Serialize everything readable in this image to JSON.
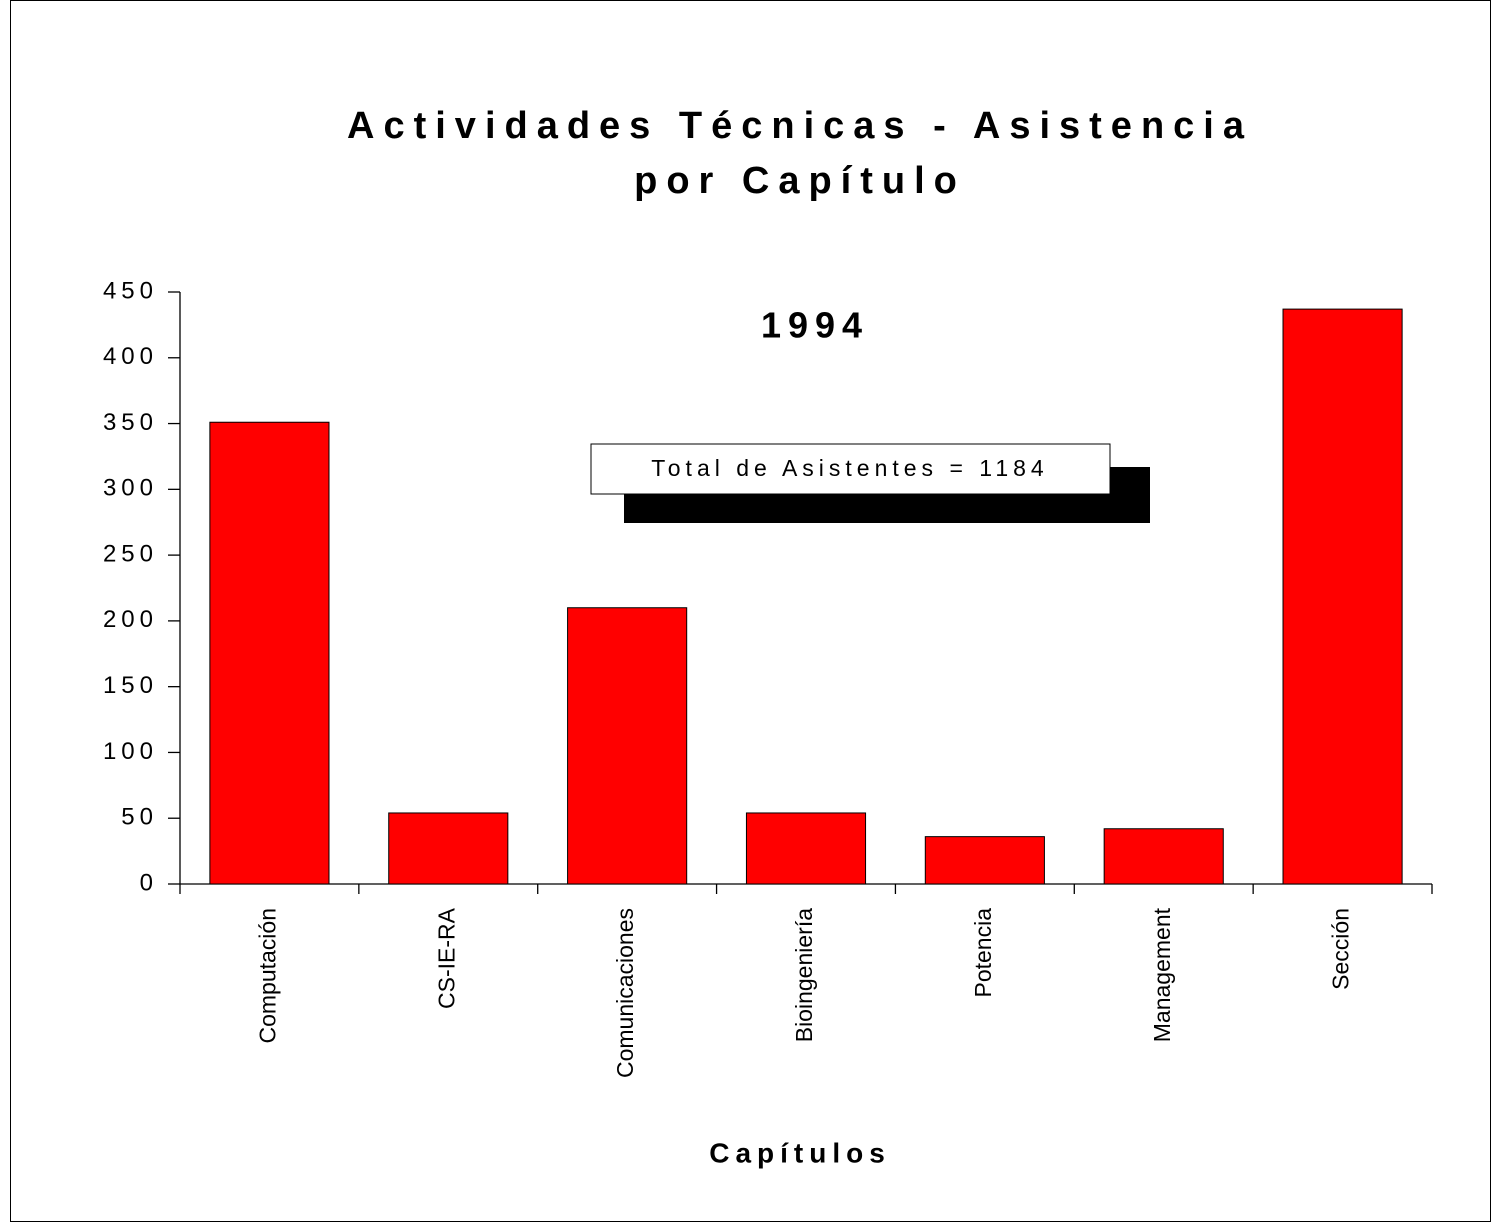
{
  "chart_data": {
    "type": "bar",
    "title": [
      "Actividades Técnicas - Asistencia",
      "por Capítulo"
    ],
    "annotations": [
      "1994",
      "Total de Asistentes = 1184"
    ],
    "x_label": "Capítulos",
    "categories": [
      "Computación",
      "CS-IE-RA",
      "Comunicaciones",
      "Bioingeniería",
      "Potencia",
      "Management",
      "Sección"
    ],
    "values": [
      351,
      54,
      210,
      54,
      36,
      42,
      437
    ],
    "color": "#ff0000",
    "ylim": [
      0,
      450
    ],
    "yticks": [
      0,
      50,
      100,
      150,
      200,
      250,
      300,
      350,
      400,
      450
    ],
    "grid": false
  }
}
